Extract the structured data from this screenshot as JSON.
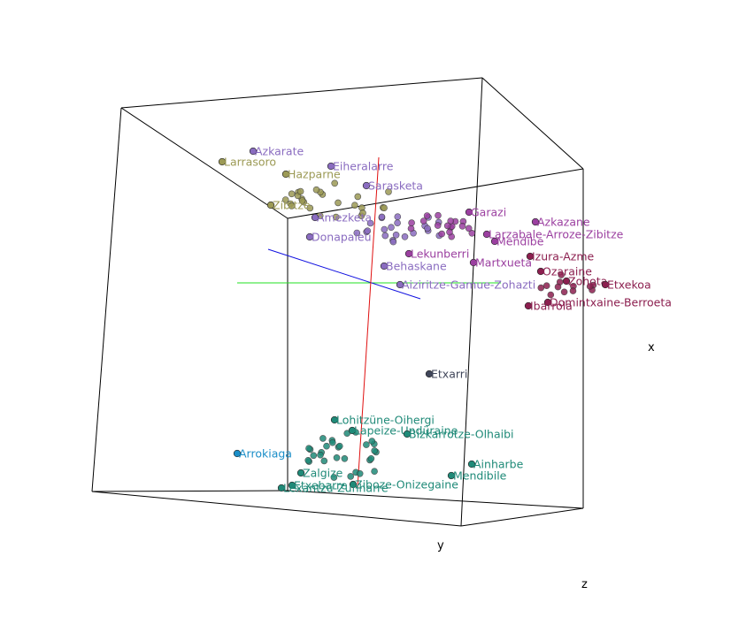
{
  "chart_data": {
    "type": "scatter",
    "title": "",
    "axes": {
      "x": "x",
      "y": "y",
      "z": "z"
    },
    "legend": "none",
    "grid": false,
    "colors": {
      "violet": "#8a6cc0",
      "purple": "#9b3fa0",
      "olive": "#9c9a55",
      "crimson": "#8c1f4f",
      "teal": "#1f8a78",
      "blue": "#1a8ec8",
      "slate": "#40465a"
    },
    "points": [
      {
        "label": "Azkarate",
        "group": "violet"
      },
      {
        "label": "Larrasoro",
        "group": "olive"
      },
      {
        "label": "Eiheralarre",
        "group": "violet"
      },
      {
        "label": "Hazparne",
        "group": "olive"
      },
      {
        "label": "Sarasketa",
        "group": "violet"
      },
      {
        "label": "Zibitze",
        "group": "olive"
      },
      {
        "label": "Amezketa",
        "group": "violet"
      },
      {
        "label": "Donapaleu",
        "group": "violet"
      },
      {
        "label": "Garazi",
        "group": "purple"
      },
      {
        "label": "Azkazane",
        "group": "purple"
      },
      {
        "label": "Larzabale-Arroze-Zibitze",
        "group": "purple"
      },
      {
        "label": "Mendibe",
        "group": "purple"
      },
      {
        "label": "Lekunberri",
        "group": "purple"
      },
      {
        "label": "Martxueta",
        "group": "purple"
      },
      {
        "label": "Behaskane",
        "group": "violet"
      },
      {
        "label": "Aiziritze-Gamue-Zohazti",
        "group": "violet"
      },
      {
        "label": "Izura-Azme",
        "group": "crimson"
      },
      {
        "label": "Ozaraine",
        "group": "crimson"
      },
      {
        "label": "Zohota",
        "group": "crimson"
      },
      {
        "label": "Etxekoa",
        "group": "crimson"
      },
      {
        "label": "Domintxaine-Berroeta",
        "group": "crimson"
      },
      {
        "label": "Ibarrola",
        "group": "crimson"
      },
      {
        "label": "Etxarri",
        "group": "slate"
      },
      {
        "label": "Lohitzüne-Oihergi",
        "group": "teal"
      },
      {
        "label": "Arrokiaga",
        "group": "blue"
      },
      {
        "label": "Lapeize-Undüraine",
        "group": "teal"
      },
      {
        "label": "Bizkarrotze-Olhaibi",
        "group": "teal"
      },
      {
        "label": "Ainharbe",
        "group": "teal"
      },
      {
        "label": "Ziboze-Onizegaine",
        "group": "teal"
      },
      {
        "label": "Etxebarre",
        "group": "teal"
      },
      {
        "label": "Lexantzü-Zunharre",
        "group": "teal"
      },
      {
        "label": "Zalgize",
        "group": "teal"
      },
      {
        "label": "Mendibile",
        "group": "teal"
      }
    ]
  }
}
